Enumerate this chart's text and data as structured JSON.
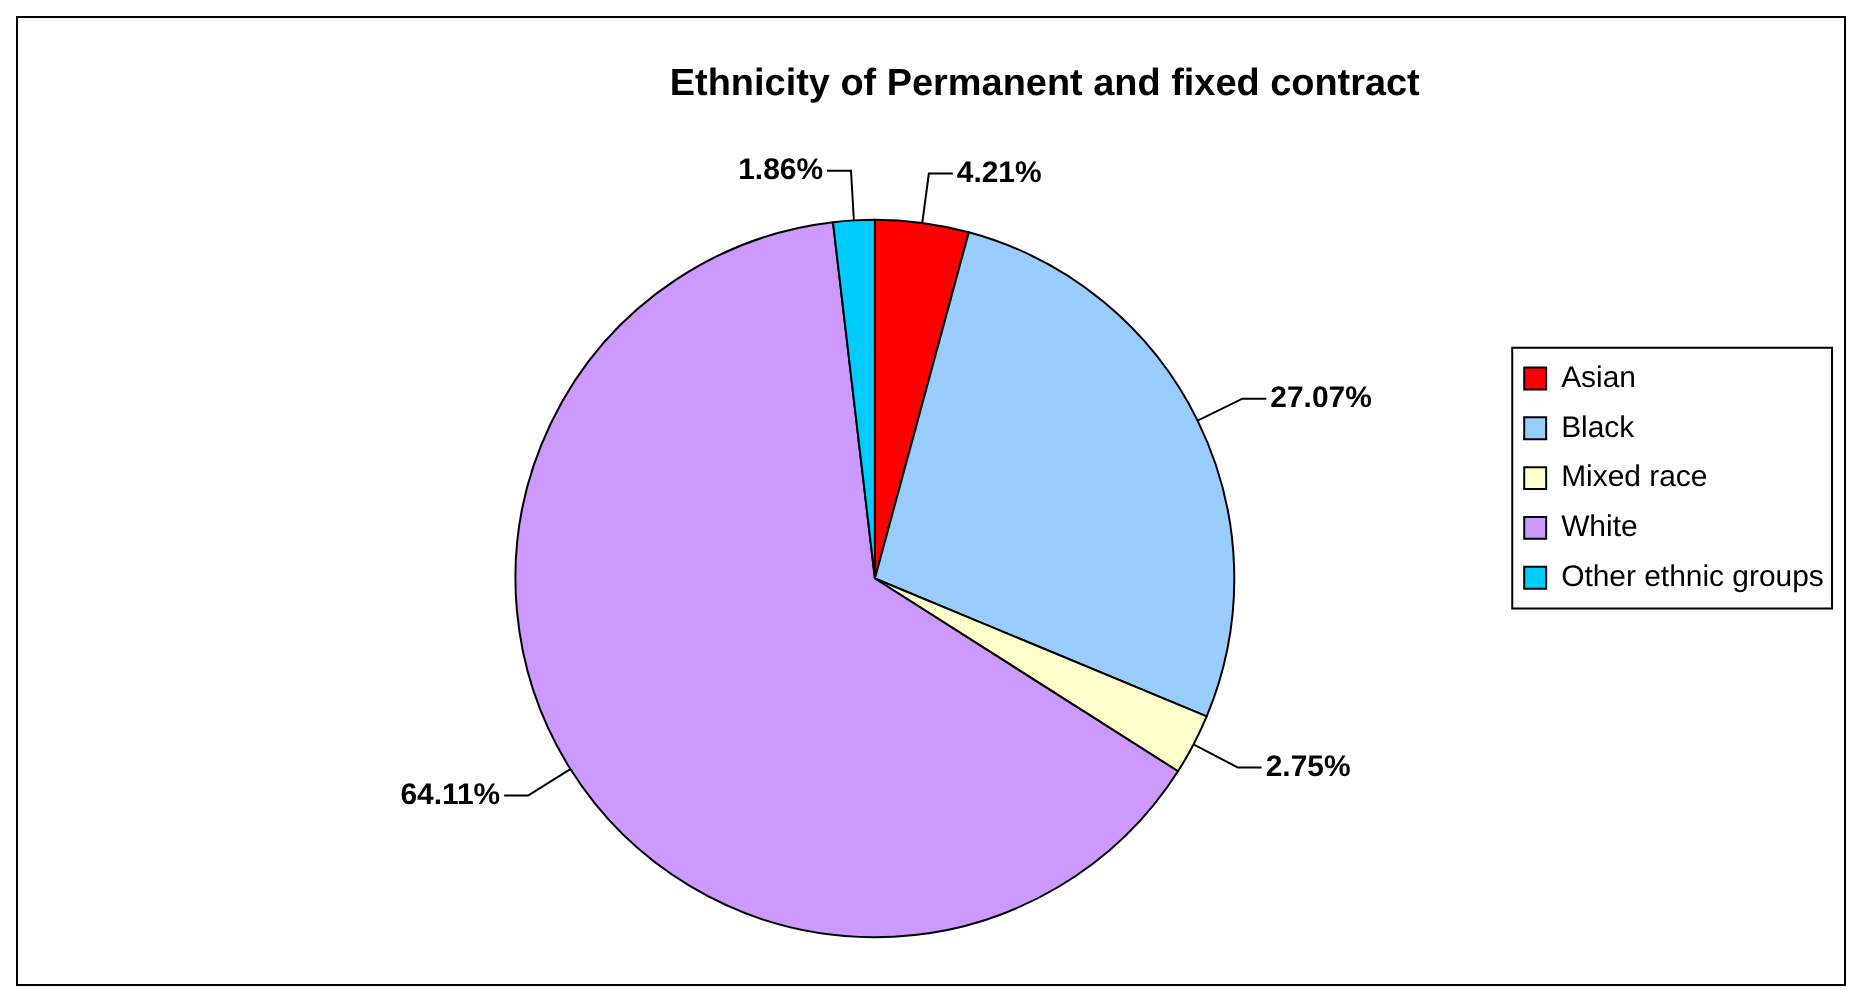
{
  "chart_data": {
    "type": "pie",
    "title": "Ethnicity of Permanent and fixed contract",
    "categories": [
      "Asian",
      "Black",
      "Mixed race",
      "White",
      "Other ethnic groups"
    ],
    "values": [
      4.21,
      27.07,
      2.75,
      64.11,
      1.86
    ],
    "colors": [
      "#ff0000",
      "#99ccff",
      "#ffffcc",
      "#cc99ff",
      "#00ccff"
    ],
    "value_labels": [
      "4.21%",
      "27.07%",
      "2.75%",
      "64.11%",
      "1.86%"
    ],
    "legend": "right"
  }
}
